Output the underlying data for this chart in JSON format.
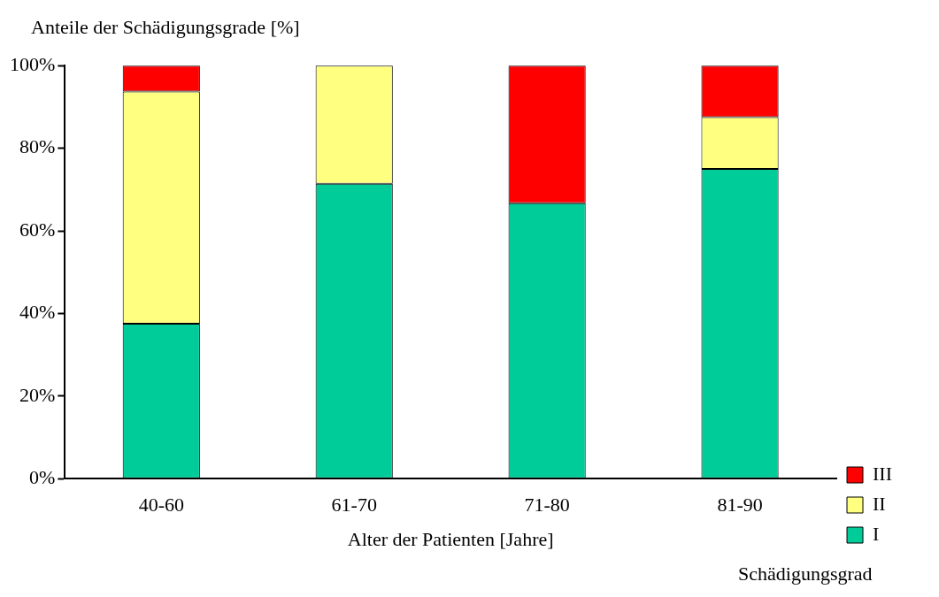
{
  "chart_data": {
    "type": "bar",
    "stacked": true,
    "ylabel": "Anteile der Schädigungsgrade [%]",
    "xlabel": "Alter der Patienten [Jahre]",
    "legend_title": "Schädigungsgrad",
    "legend": "right",
    "grid": false,
    "categories": [
      "40-60",
      "61-70",
      "71-80",
      "81-90"
    ],
    "ylim": [
      0,
      100
    ],
    "yticks": [
      {
        "value": 0,
        "label": "0%"
      },
      {
        "value": 20,
        "label": "20%"
      },
      {
        "value": 40,
        "label": "40%"
      },
      {
        "value": 60,
        "label": "60%"
      },
      {
        "value": 80,
        "label": "80%"
      },
      {
        "value": 100,
        "label": "100%"
      }
    ],
    "series": [
      {
        "name": "I",
        "color": "#00cc99",
        "values": [
          37.5,
          71.4,
          66.7,
          75
        ]
      },
      {
        "name": "II",
        "color": "#ffff80",
        "values": [
          56.2,
          28.6,
          0,
          12.5
        ]
      },
      {
        "name": "III",
        "color": "#ff0000",
        "values": [
          6.3,
          0,
          33.3,
          12.5
        ]
      }
    ]
  }
}
